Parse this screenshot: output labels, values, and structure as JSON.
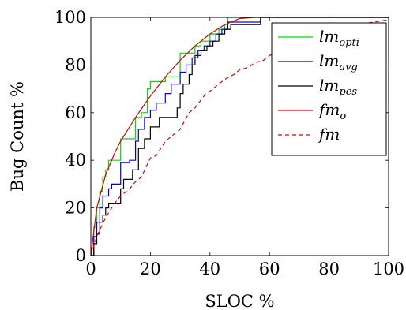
{
  "chart_data": {
    "type": "line",
    "xlabel": "SLOC %",
    "ylabel": "Bug Count %",
    "xlim": [
      0,
      100
    ],
    "ylim": [
      0,
      100
    ],
    "xticks": [
      "0",
      "20",
      "40",
      "60",
      "80",
      "100"
    ],
    "yticks": [
      "0",
      "20",
      "40",
      "60",
      "80",
      "100"
    ],
    "grid": false,
    "legend_position": "top-right",
    "series": [
      {
        "name": "lm_opti",
        "legend_base": "lm",
        "legend_sub": "opti",
        "color": "#00dd00",
        "dash": "solid",
        "step": true,
        "x": [
          0,
          1,
          2,
          3,
          4,
          5,
          6,
          7,
          8,
          10,
          13,
          15,
          17,
          19,
          20,
          22,
          25,
          29,
          30,
          33,
          35,
          37,
          40,
          43,
          45,
          46,
          52,
          57,
          100
        ],
        "y": [
          0,
          12,
          20,
          27,
          33,
          36,
          40,
          40,
          40,
          49,
          49,
          58,
          60,
          70,
          73,
          73,
          75,
          75,
          85,
          85,
          88,
          90,
          93,
          95,
          97,
          100,
          100,
          100,
          100
        ]
      },
      {
        "name": "lm_avg",
        "legend_base": "lm",
        "legend_sub": "avg",
        "color": "#0000ee",
        "dash": "solid",
        "step": true,
        "x": [
          0,
          1,
          2,
          3,
          4,
          6,
          7,
          9,
          10,
          13,
          15,
          16,
          18,
          20,
          22,
          25,
          27,
          29,
          30,
          32,
          34,
          36,
          38,
          40,
          42,
          44,
          46,
          56,
          57,
          100
        ],
        "y": [
          0,
          8,
          14,
          20,
          25,
          28,
          30,
          30,
          39,
          40,
          48,
          53,
          58,
          61,
          64,
          68,
          72,
          72,
          77,
          80,
          83,
          86,
          88,
          90,
          93,
          95,
          98,
          98,
          100,
          100
        ]
      },
      {
        "name": "lm_pes",
        "legend_base": "lm",
        "legend_sub": "pes",
        "color": "#000000",
        "dash": "solid",
        "step": true,
        "x": [
          0,
          1,
          2,
          3,
          4,
          5,
          6,
          8,
          10,
          11,
          14,
          16,
          18,
          20,
          23,
          26,
          29,
          30,
          31,
          33,
          34,
          35,
          37,
          39,
          41,
          43,
          45,
          47,
          49,
          56,
          57,
          100
        ],
        "y": [
          0,
          5,
          9,
          14,
          17,
          20,
          22,
          22,
          28,
          32,
          36,
          45,
          49,
          54,
          58,
          58,
          62,
          68,
          72,
          76,
          80,
          84,
          86,
          88,
          90,
          93,
          95,
          97,
          97,
          97,
          100,
          100
        ]
      },
      {
        "name": "fm_o",
        "legend_base": "fm",
        "legend_sub": "o",
        "color": "#dd0000",
        "dash": "solid",
        "step": false,
        "x": [
          0,
          2,
          5,
          8,
          10,
          15,
          20,
          25,
          30,
          35,
          40,
          45,
          50,
          55,
          60,
          70,
          80,
          90,
          100
        ],
        "y": [
          0,
          20,
          34,
          43,
          48,
          58,
          67,
          75,
          82,
          88,
          93,
          97,
          99.5,
          100,
          100,
          100,
          100,
          100,
          100
        ]
      },
      {
        "name": "fm",
        "legend_base": "fm",
        "legend_sub": "",
        "color": "#dd0000",
        "dash": "dashed",
        "step": false,
        "x": [
          0,
          2,
          5,
          8,
          10,
          13,
          15,
          17,
          20,
          22,
          25,
          28,
          30,
          33,
          35,
          38,
          40,
          43,
          45,
          48,
          50,
          53,
          55,
          58,
          60,
          63,
          65,
          70,
          75,
          80,
          85,
          90,
          95,
          100
        ],
        "y": [
          0,
          8,
          16,
          22,
          25,
          28,
          31,
          33,
          41,
          42,
          48,
          51,
          53,
          60,
          62,
          67,
          69,
          72,
          74,
          76,
          78,
          79,
          81,
          82,
          84,
          85,
          86,
          88,
          90,
          94,
          96,
          97,
          98,
          99
        ]
      }
    ]
  }
}
